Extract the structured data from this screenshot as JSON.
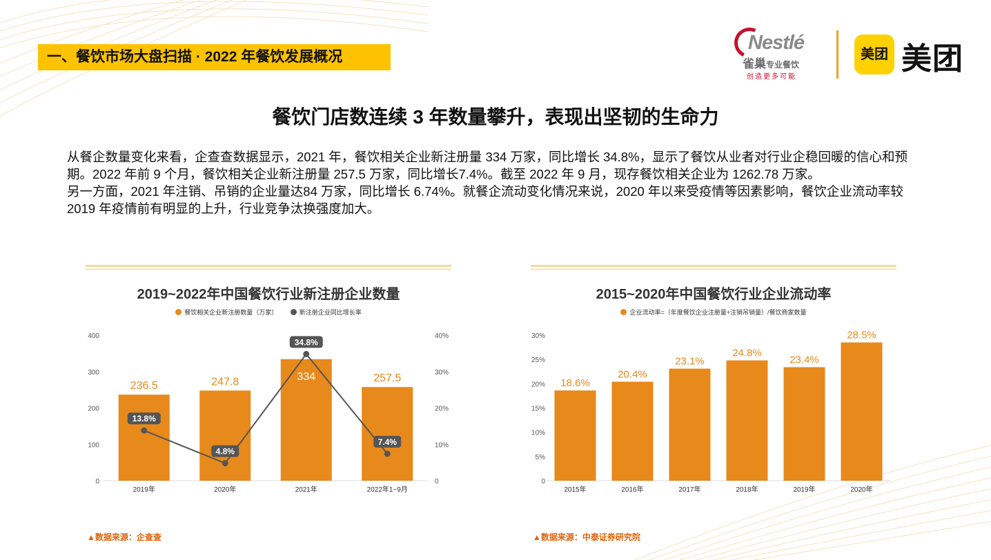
{
  "section_tag": "一、餐饮市场大盘扫描 · 2022 年餐饮发展概况",
  "logos": {
    "nestle_word": "Nestlé",
    "nestle_cn": "雀巢",
    "nestle_cn_small": "专业餐饮",
    "nestle_slogan": "创造更多可能",
    "meituan_badge": "美团",
    "meituan_text": "美团"
  },
  "main_title": "餐饮门店数连续 3 年数量攀升，表现出坚韧的生命力",
  "paragraphs": [
    "从餐企数量变化来看，企查查数据显示，2021 年，餐饮相关企业新注册量 334 万家，同比增长 34.8%，显示了餐饮从业者对行业企稳回暖的信心和预期。2022 年前 9 个月，餐饮相关企业新注册量 257.5 万家，同比增长7.4%。截至 2022 年 9 月，现存餐饮相关企业为 1262.78 万家。",
    "另一方面，2021 年注销、吊销的企业量达84 万家，同比增长 6.74%。就餐企流动变化情况来说，2020 年以来受疫情等因素影响，餐饮企业流动率较 2019 年疫情前有明显的上升，行业竞争汰换强度加大。"
  ],
  "colors": {
    "accent": "#E8891B",
    "dark": "#555555",
    "tag_bg": "#FDC300",
    "source": "#E0620A"
  },
  "chart_data": [
    {
      "type": "bar",
      "title": "2019~2022年中国餐饮行业新注册企业数量",
      "categories": [
        "2019年",
        "2020年",
        "2021年",
        "2022年1~9月"
      ],
      "series": [
        {
          "name": "餐饮相关企业新注册数量（万家）",
          "kind": "bar",
          "axis": "left",
          "values": [
            236.5,
            247.8,
            334,
            257.5
          ],
          "labels": [
            "236.5",
            "247.8",
            "334",
            "257.5"
          ]
        },
        {
          "name": "新注册企业同比增长率",
          "kind": "line",
          "axis": "right",
          "values": [
            13.8,
            4.8,
            34.8,
            7.4
          ],
          "labels": [
            "13.8%",
            "4.8%",
            "34.8%",
            "7.4%"
          ]
        }
      ],
      "ylim": [
        0,
        400
      ],
      "yticks": [
        "0",
        "100",
        "200",
        "300",
        "400"
      ],
      "y2lim": [
        0,
        40
      ],
      "y2ticks": [
        "0",
        "10%",
        "20%",
        "30%",
        "40%"
      ],
      "legend": "top",
      "grid": false,
      "source": "▲数据来源：企查查"
    },
    {
      "type": "bar",
      "title": "2015~2020年中国餐饮行业企业流动率",
      "categories": [
        "2015年",
        "2016年",
        "2017年",
        "2018年",
        "2019年",
        "2020年"
      ],
      "series": [
        {
          "name": "企业流动率=（年度餐饮企业注册量+注销吊销量）/餐饮商家数量",
          "kind": "bar",
          "axis": "left",
          "values": [
            18.6,
            20.4,
            23.1,
            24.8,
            23.4,
            28.5
          ],
          "labels": [
            "18.6%",
            "20.4%",
            "23.1%",
            "24.8%",
            "23.4%",
            "28.5%"
          ]
        }
      ],
      "ylim": [
        0,
        30
      ],
      "yticks": [
        "0",
        "5%",
        "10%",
        "15%",
        "20%",
        "25%",
        "30%"
      ],
      "legend": "top",
      "grid": false,
      "source": "▲数据来源：中泰证券研究院"
    }
  ]
}
